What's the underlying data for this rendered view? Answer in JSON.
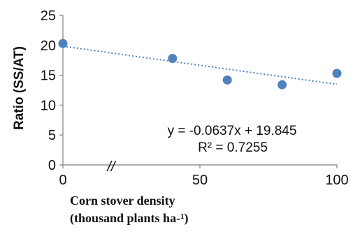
{
  "chart_data": {
    "type": "scatter",
    "xlabel_line1": "Corn stover density",
    "xlabel_line2": "(thousand plants ha-¹)",
    "ylabel": "Ratio (SS/AT)",
    "xlim": [
      0,
      100
    ],
    "ylim": [
      0,
      25
    ],
    "x_ticks": [
      "0",
      "50",
      "100"
    ],
    "y_ticks": [
      "0",
      "5",
      "10",
      "15",
      "20",
      "25"
    ],
    "axis_break_mark": "//",
    "points": [
      {
        "x": 0,
        "y": 20.3
      },
      {
        "x": 40,
        "y": 17.8
      },
      {
        "x": 60,
        "y": 14.2
      },
      {
        "x": 80,
        "y": 13.4
      },
      {
        "x": 100,
        "y": 15.3
      }
    ],
    "trendline": {
      "type": "linear",
      "slope": -0.0637,
      "intercept": 19.845,
      "style": "dotted"
    },
    "equation_text": "y = -0.0637x + 19.845",
    "r2_text": "R² = 0.7255",
    "grid": false,
    "colors": {
      "marker": "#4f81bd",
      "trendline": "#4f81bd",
      "axis": "#7f7f7f"
    }
  }
}
